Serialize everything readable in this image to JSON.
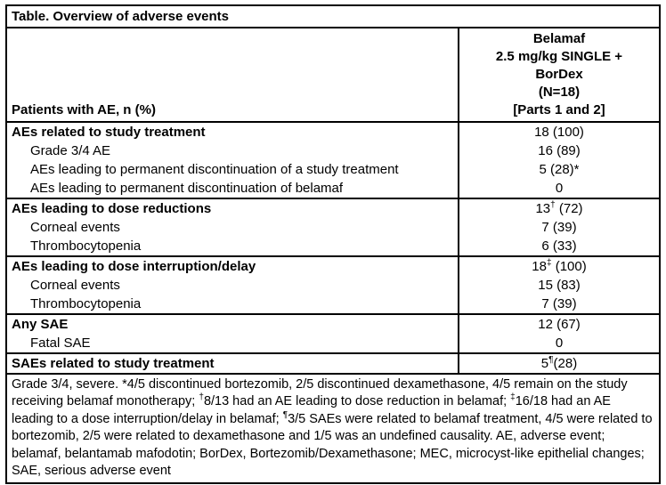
{
  "table": {
    "title": "Table. Overview of adverse events",
    "header": {
      "patients_label": "Patients with AE, n (%)",
      "treatment_lines": [
        "Belamaf",
        "2.5 mg/kg SINGLE +",
        "BorDex",
        "(N=18)",
        "[Parts 1 and 2]"
      ]
    },
    "sections": [
      {
        "rows": [
          {
            "label": "AEs related to study treatment",
            "value": "18 (100)",
            "bold": true,
            "indent": false
          },
          {
            "label": "Grade 3/4 AE",
            "value": "16 (89)",
            "bold": false,
            "indent": true
          },
          {
            "label": "AEs leading to permanent discontinuation of a study treatment",
            "value": "5 (28)*",
            "bold": false,
            "indent": true
          },
          {
            "label": "AEs leading to permanent discontinuation of belamaf",
            "value": "0",
            "bold": false,
            "indent": true
          }
        ]
      },
      {
        "rows": [
          {
            "label": "AEs leading to dose reductions",
            "value": "13† (72)",
            "bold": true,
            "indent": false
          },
          {
            "label": "Corneal events",
            "value": "7 (39)",
            "bold": false,
            "indent": true
          },
          {
            "label": "Thrombocytopenia",
            "value": "6 (33)",
            "bold": false,
            "indent": true
          }
        ]
      },
      {
        "rows": [
          {
            "label": "AEs leading to dose interruption/delay",
            "value": "18‡ (100)",
            "bold": true,
            "indent": false
          },
          {
            "label": "Corneal events",
            "value": "15 (83)",
            "bold": false,
            "indent": true
          },
          {
            "label": "Thrombocytopenia",
            "value": "7 (39)",
            "bold": false,
            "indent": true
          }
        ]
      },
      {
        "rows": [
          {
            "label": "Any SAE",
            "value": "12 (67)",
            "bold": true,
            "indent": false
          },
          {
            "label": "Fatal SAE",
            "value": "0",
            "bold": false,
            "indent": true
          }
        ]
      },
      {
        "rows": [
          {
            "label": "SAEs related to study treatment",
            "value": "5¶(28)",
            "bold": true,
            "indent": false
          }
        ]
      }
    ],
    "footnote": "Grade 3/4, severe. *4/5 discontinued bortezomib, 2/5 discontinued dexamethasone, 4/5 remain on the study receiving belamaf monotherapy; †8/13 had an AE leading to dose reduction in belamaf; ‡16/18 had an AE leading to a dose interruption/delay in belamaf; ¶3/5 SAEs were related to belamaf treatment, 4/5 were related to bortezomib, 2/5 were related to dexamethasone and 1/5 was an undefined causality. AE, adverse event; belamaf, belantamab mafodotin; BorDex, Bortezomib/Dexamethasone; MEC, microcyst-like epithelial changes; SAE, serious adverse event"
  }
}
